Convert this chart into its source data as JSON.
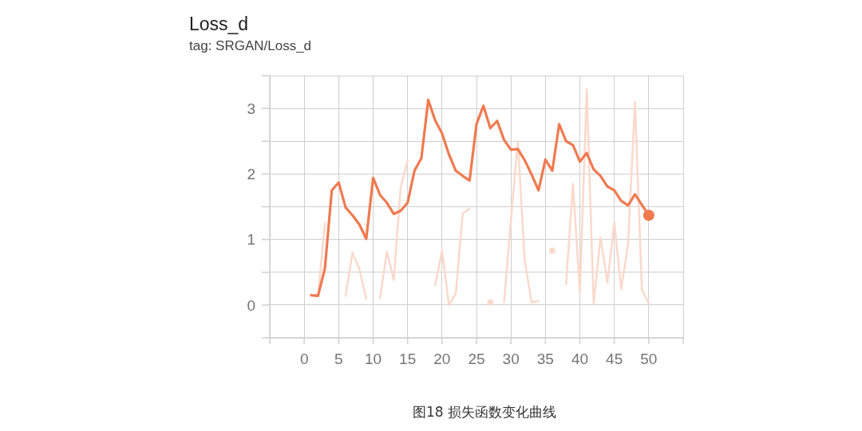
{
  "chart_data": {
    "type": "line",
    "title": "Loss_d",
    "subtitle": "tag: SRGAN/Loss_d",
    "x": [
      1,
      2,
      3,
      4,
      5,
      6,
      7,
      8,
      9,
      10,
      11,
      12,
      13,
      14,
      15,
      16,
      17,
      18,
      19,
      20,
      21,
      22,
      23,
      24,
      25,
      26,
      27,
      28,
      29,
      30,
      31,
      32,
      33,
      34,
      35,
      36,
      37,
      38,
      39,
      40,
      41,
      42,
      43,
      44,
      45,
      46,
      47,
      48,
      49,
      50
    ],
    "series": [
      {
        "color": "#fad9cc",
        "values": [
          0.15,
          0.14,
          1.25,
          null,
          null,
          0.14,
          0.8,
          0.55,
          0.1,
          null,
          0.1,
          0.82,
          0.38,
          1.8,
          2.2,
          null,
          null,
          null,
          0.3,
          0.83,
          0,
          0.18,
          1.4,
          1.47,
          null,
          null,
          0.04,
          null,
          0.04,
          1.3,
          2.5,
          0.68,
          0.04,
          0.06,
          null,
          0.83,
          null,
          0.32,
          1.85,
          0.2,
          3.3,
          0.02,
          1.03,
          0.34,
          1.26,
          0.24,
          0.93,
          3.1,
          0.24,
          0.02
        ]
      },
      {
        "color": "#ef7a50",
        "values": [
          0.15,
          0.14,
          0.56,
          1.75,
          1.87,
          1.49,
          1.37,
          1.23,
          1.01,
          1.94,
          1.68,
          1.56,
          1.39,
          1.44,
          1.56,
          2.05,
          2.24,
          3.13,
          2.82,
          2.62,
          2.3,
          2.05,
          1.97,
          1.9,
          2.76,
          3.04,
          2.7,
          2.81,
          2.52,
          2.37,
          2.38,
          2.21,
          1.99,
          1.75,
          2.22,
          2.05,
          2.76,
          2.5,
          2.44,
          2.19,
          2.32,
          2.07,
          1.97,
          1.81,
          1.75,
          1.59,
          1.52,
          1.69,
          1.53,
          1.37
        ]
      },
      {
        "type": "scatter",
        "marker": "circle",
        "color": "#ef7a50",
        "x": [
          50
        ],
        "values": [
          1.37
        ]
      }
    ],
    "xlim": [
      -5,
      55
    ],
    "xticks": [
      {
        "value": -5,
        "label": null
      },
      0,
      5,
      10,
      15,
      20,
      25,
      30,
      35,
      40,
      45,
      50,
      {
        "value": 55,
        "label": null
      }
    ],
    "ylim": [
      -0.5,
      3.5
    ],
    "yticks": [
      {
        "value": -0.5,
        "label": null
      },
      0,
      {
        "value": 0.5,
        "label": null
      },
      1,
      {
        "value": 1.5,
        "label": null
      },
      2,
      {
        "value": 2.5,
        "label": null
      },
      3,
      {
        "value": 3.5,
        "label": null
      }
    ],
    "grid": true,
    "annotations": [
      "图18 损失函数变化曲线"
    ]
  }
}
